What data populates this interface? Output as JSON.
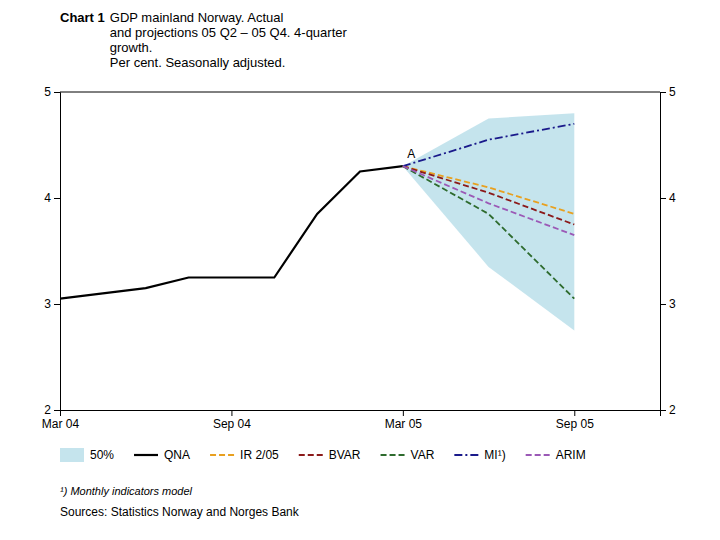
{
  "chart_data": {
    "type": "line",
    "title": "Chart 1",
    "subtitle": "GDP mainland Norway. Actual\nand projections 05 Q2 – 05 Q4. 4-quarter\ngrowth.\nPer cent. Seasonally adjusted.",
    "footnote": "¹) Monthly indicators model",
    "source": "Sources: Statistics Norway and Norges Bank",
    "xlim": [
      0,
      7
    ],
    "xticks": [
      {
        "value": 0,
        "label": "Mar 04"
      },
      {
        "value": 2,
        "label": "Sep 04"
      },
      {
        "value": 4,
        "label": "Mar 05"
      },
      {
        "value": 6,
        "label": "Sep 05"
      }
    ],
    "ylim": [
      2,
      5
    ],
    "yticks": [
      2,
      3,
      4,
      5
    ],
    "grid": false,
    "series": [
      {
        "name": "50%",
        "type": "area",
        "color": "#add8e6",
        "x": [
          4,
          5,
          6
        ],
        "upper": [
          4.3,
          4.75,
          4.8
        ],
        "lower": [
          4.3,
          3.35,
          2.75
        ]
      },
      {
        "name": "QNA",
        "color": "#000000",
        "line_style": "solid",
        "x": [
          0,
          0.5,
          1,
          1.5,
          2,
          2.5,
          3,
          3.5,
          4
        ],
        "values": [
          3.05,
          3.1,
          3.15,
          3.25,
          3.25,
          3.25,
          3.85,
          4.25,
          4.3
        ]
      },
      {
        "name": "IR 2/05",
        "color": "#e8a020",
        "line_style": "dashed",
        "x": [
          4,
          5,
          6
        ],
        "values": [
          4.3,
          4.1,
          3.85
        ]
      },
      {
        "name": "BVAR",
        "color": "#8b1a1a",
        "line_style": "dashed",
        "x": [
          4,
          5,
          6
        ],
        "values": [
          4.3,
          4.05,
          3.75
        ]
      },
      {
        "name": "VAR",
        "color": "#2e6b2e",
        "line_style": "dashed",
        "x": [
          4,
          5,
          6
        ],
        "values": [
          4.3,
          3.85,
          3.05
        ]
      },
      {
        "name": "MI¹)",
        "color": "#1a1a8b",
        "line_style": "dashdot",
        "x": [
          4,
          5,
          6
        ],
        "values": [
          4.3,
          4.55,
          4.7
        ]
      },
      {
        "name": "ARIM",
        "color": "#9b59b6",
        "line_style": "dashed",
        "x": [
          4,
          5,
          6
        ],
        "values": [
          4.3,
          3.95,
          3.65
        ]
      }
    ],
    "annotations": [
      {
        "text": "A",
        "x": 4.05,
        "y": 4.38
      }
    ]
  }
}
